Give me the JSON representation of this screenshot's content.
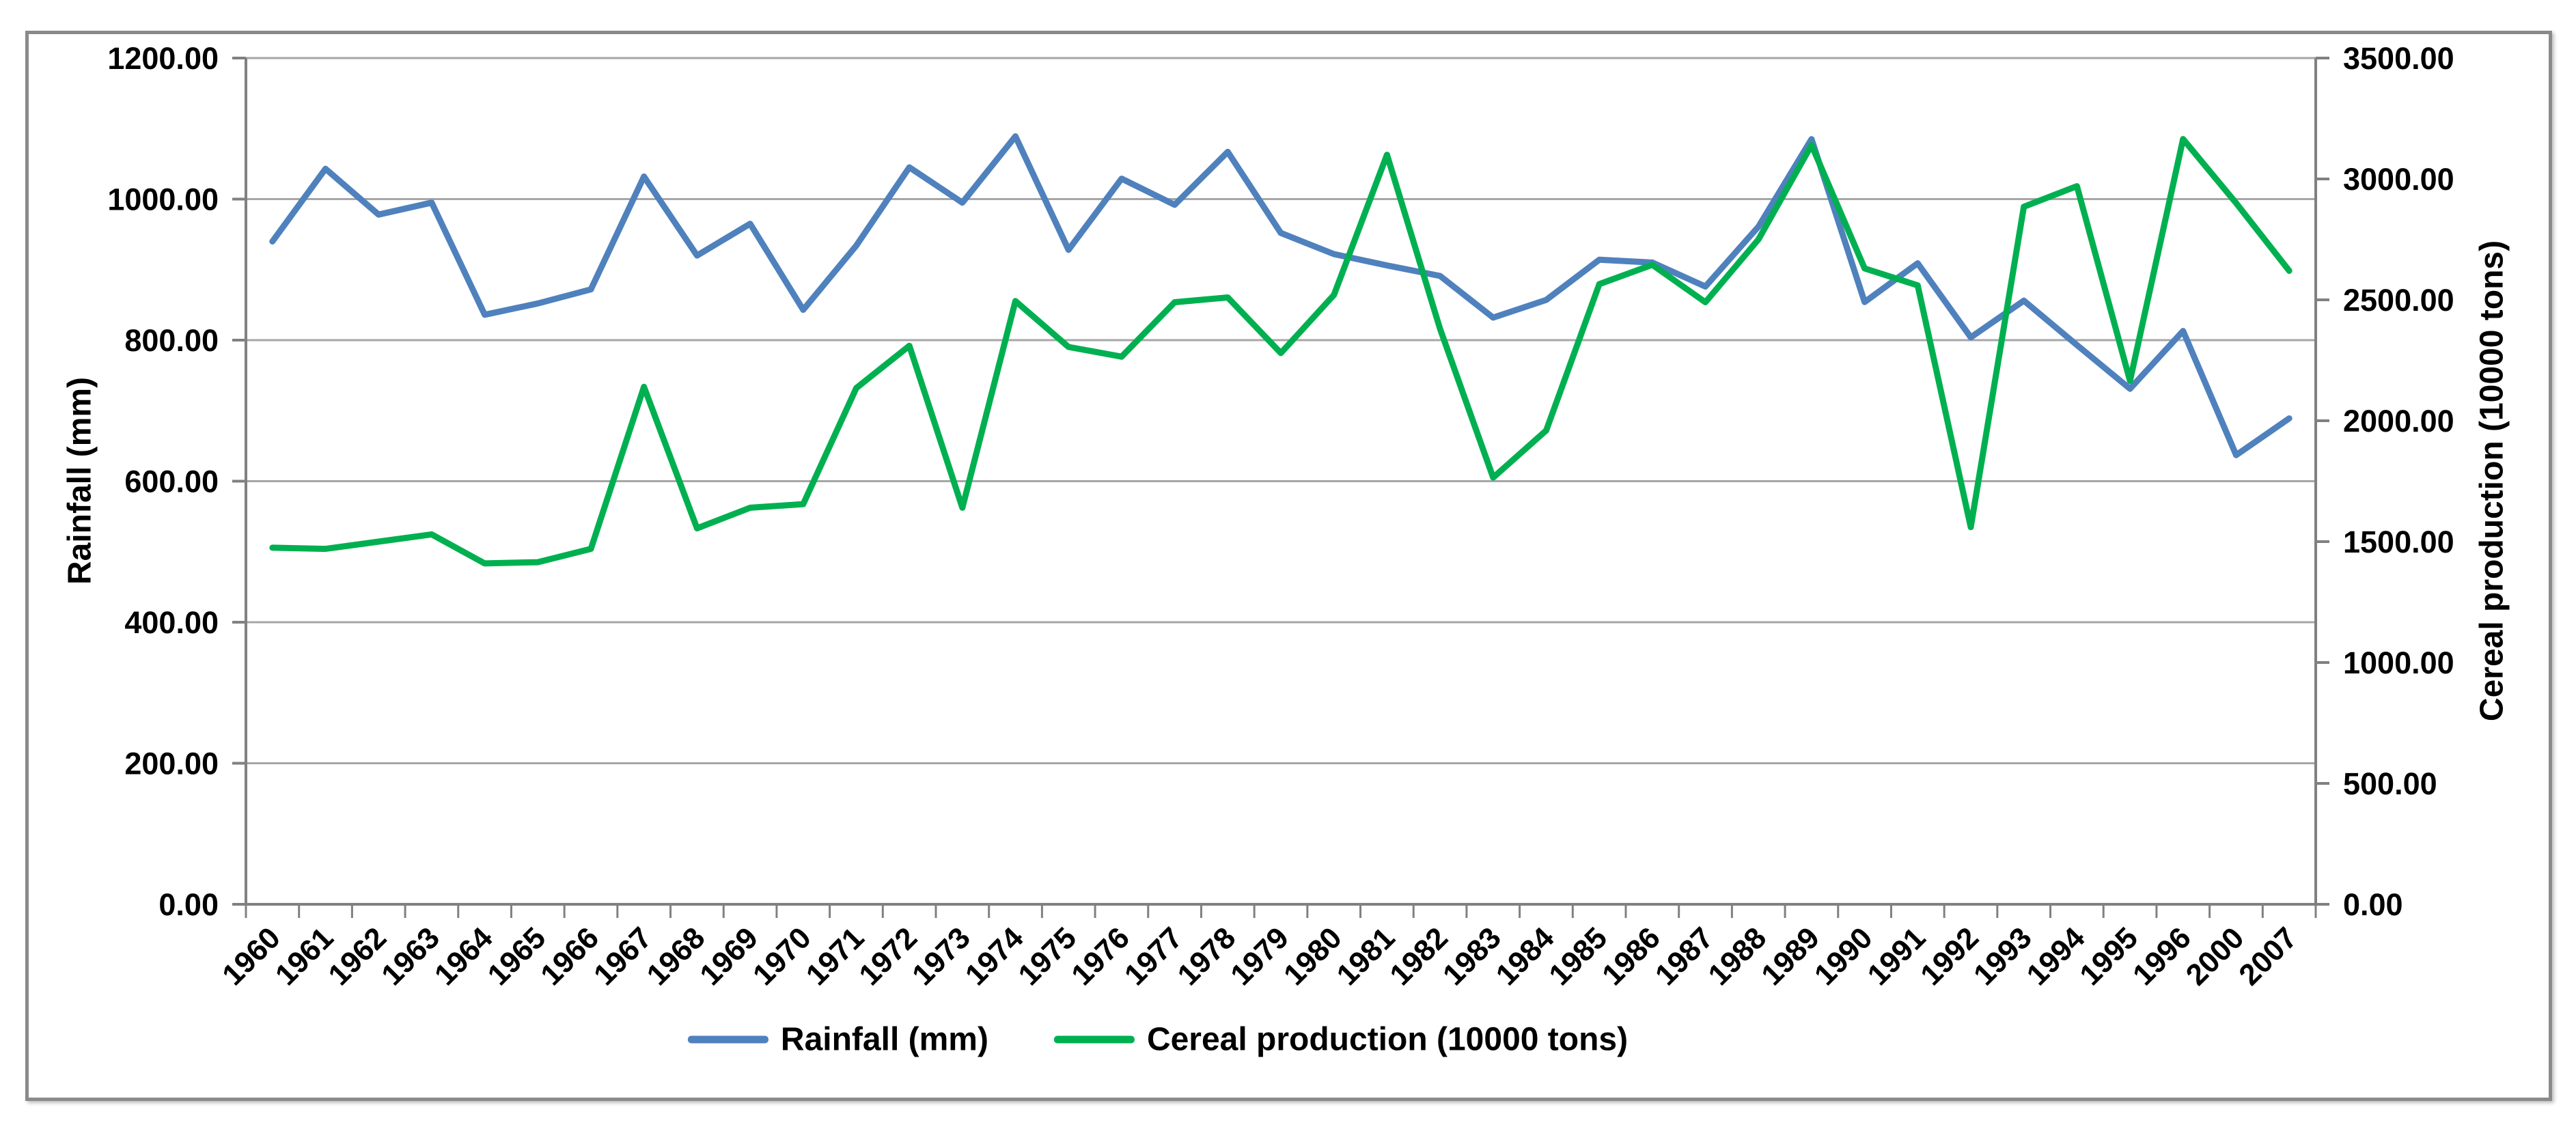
{
  "chart_data": {
    "type": "line",
    "title": "",
    "categories": [
      "1960",
      "1961",
      "1962",
      "1963",
      "1964",
      "1965",
      "1966",
      "1967",
      "1968",
      "1969",
      "1970",
      "1971",
      "1972",
      "1973",
      "1974",
      "1975",
      "1976",
      "1977",
      "1978",
      "1979",
      "1980",
      "1981",
      "1982",
      "1983",
      "1984",
      "1985",
      "1986",
      "1987",
      "1988",
      "1989",
      "1990",
      "1991",
      "1992",
      "1993",
      "1994",
      "1995",
      "1996",
      "2000",
      "2007"
    ],
    "series": [
      {
        "name": "Rainfall (mm)",
        "axis": "left",
        "color": "#4F81BD",
        "values": [
          940,
          1043,
          978,
          995,
          836,
          852,
          872,
          1032,
          920,
          965,
          843,
          934,
          1045,
          995,
          1089,
          928,
          1029,
          992,
          1067,
          952,
          922,
          906,
          891,
          832,
          857,
          914,
          910,
          876,
          961,
          1085,
          854,
          909,
          804,
          856,
          793,
          731,
          813,
          637,
          689
        ]
      },
      {
        "name": "Cereal production (10000 tons)",
        "axis": "right",
        "color": "#00B050",
        "values": [
          1475,
          1470,
          1500,
          1530,
          1410,
          1415,
          1470,
          2140,
          1555,
          1640,
          1655,
          2135,
          2310,
          1640,
          2495,
          2305,
          2265,
          2490,
          2510,
          2280,
          2520,
          3100,
          2380,
          1765,
          1960,
          2565,
          2645,
          2490,
          2750,
          3140,
          2630,
          2560,
          1560,
          2885,
          2970,
          2165,
          3165,
          2900,
          2620
        ]
      }
    ],
    "left_axis": {
      "title": "Rainfall (mm)",
      "min": 0,
      "max": 1200,
      "step": 200,
      "tick_labels": [
        "0.00",
        "200.00",
        "400.00",
        "600.00",
        "800.00",
        "1000.00",
        "1200.00"
      ]
    },
    "right_axis": {
      "title": "Cereal production (10000 tons)",
      "min": 0,
      "max": 3500,
      "step": 500,
      "tick_labels": [
        "0.00",
        "500.00",
        "1000.00",
        "1500.00",
        "2000.00",
        "2500.00",
        "3000.00",
        "3500.00"
      ]
    },
    "grid": true,
    "legend_position": "bottom",
    "legend": [
      "Rainfall (mm)",
      "Cereal production (10000 tons)"
    ]
  },
  "styles": {
    "grid_color": "#A6A6A6",
    "axis_color": "#808080",
    "text_color": "#000000",
    "background": "#FFFFFF",
    "frame_color": "#8A8A8A"
  }
}
